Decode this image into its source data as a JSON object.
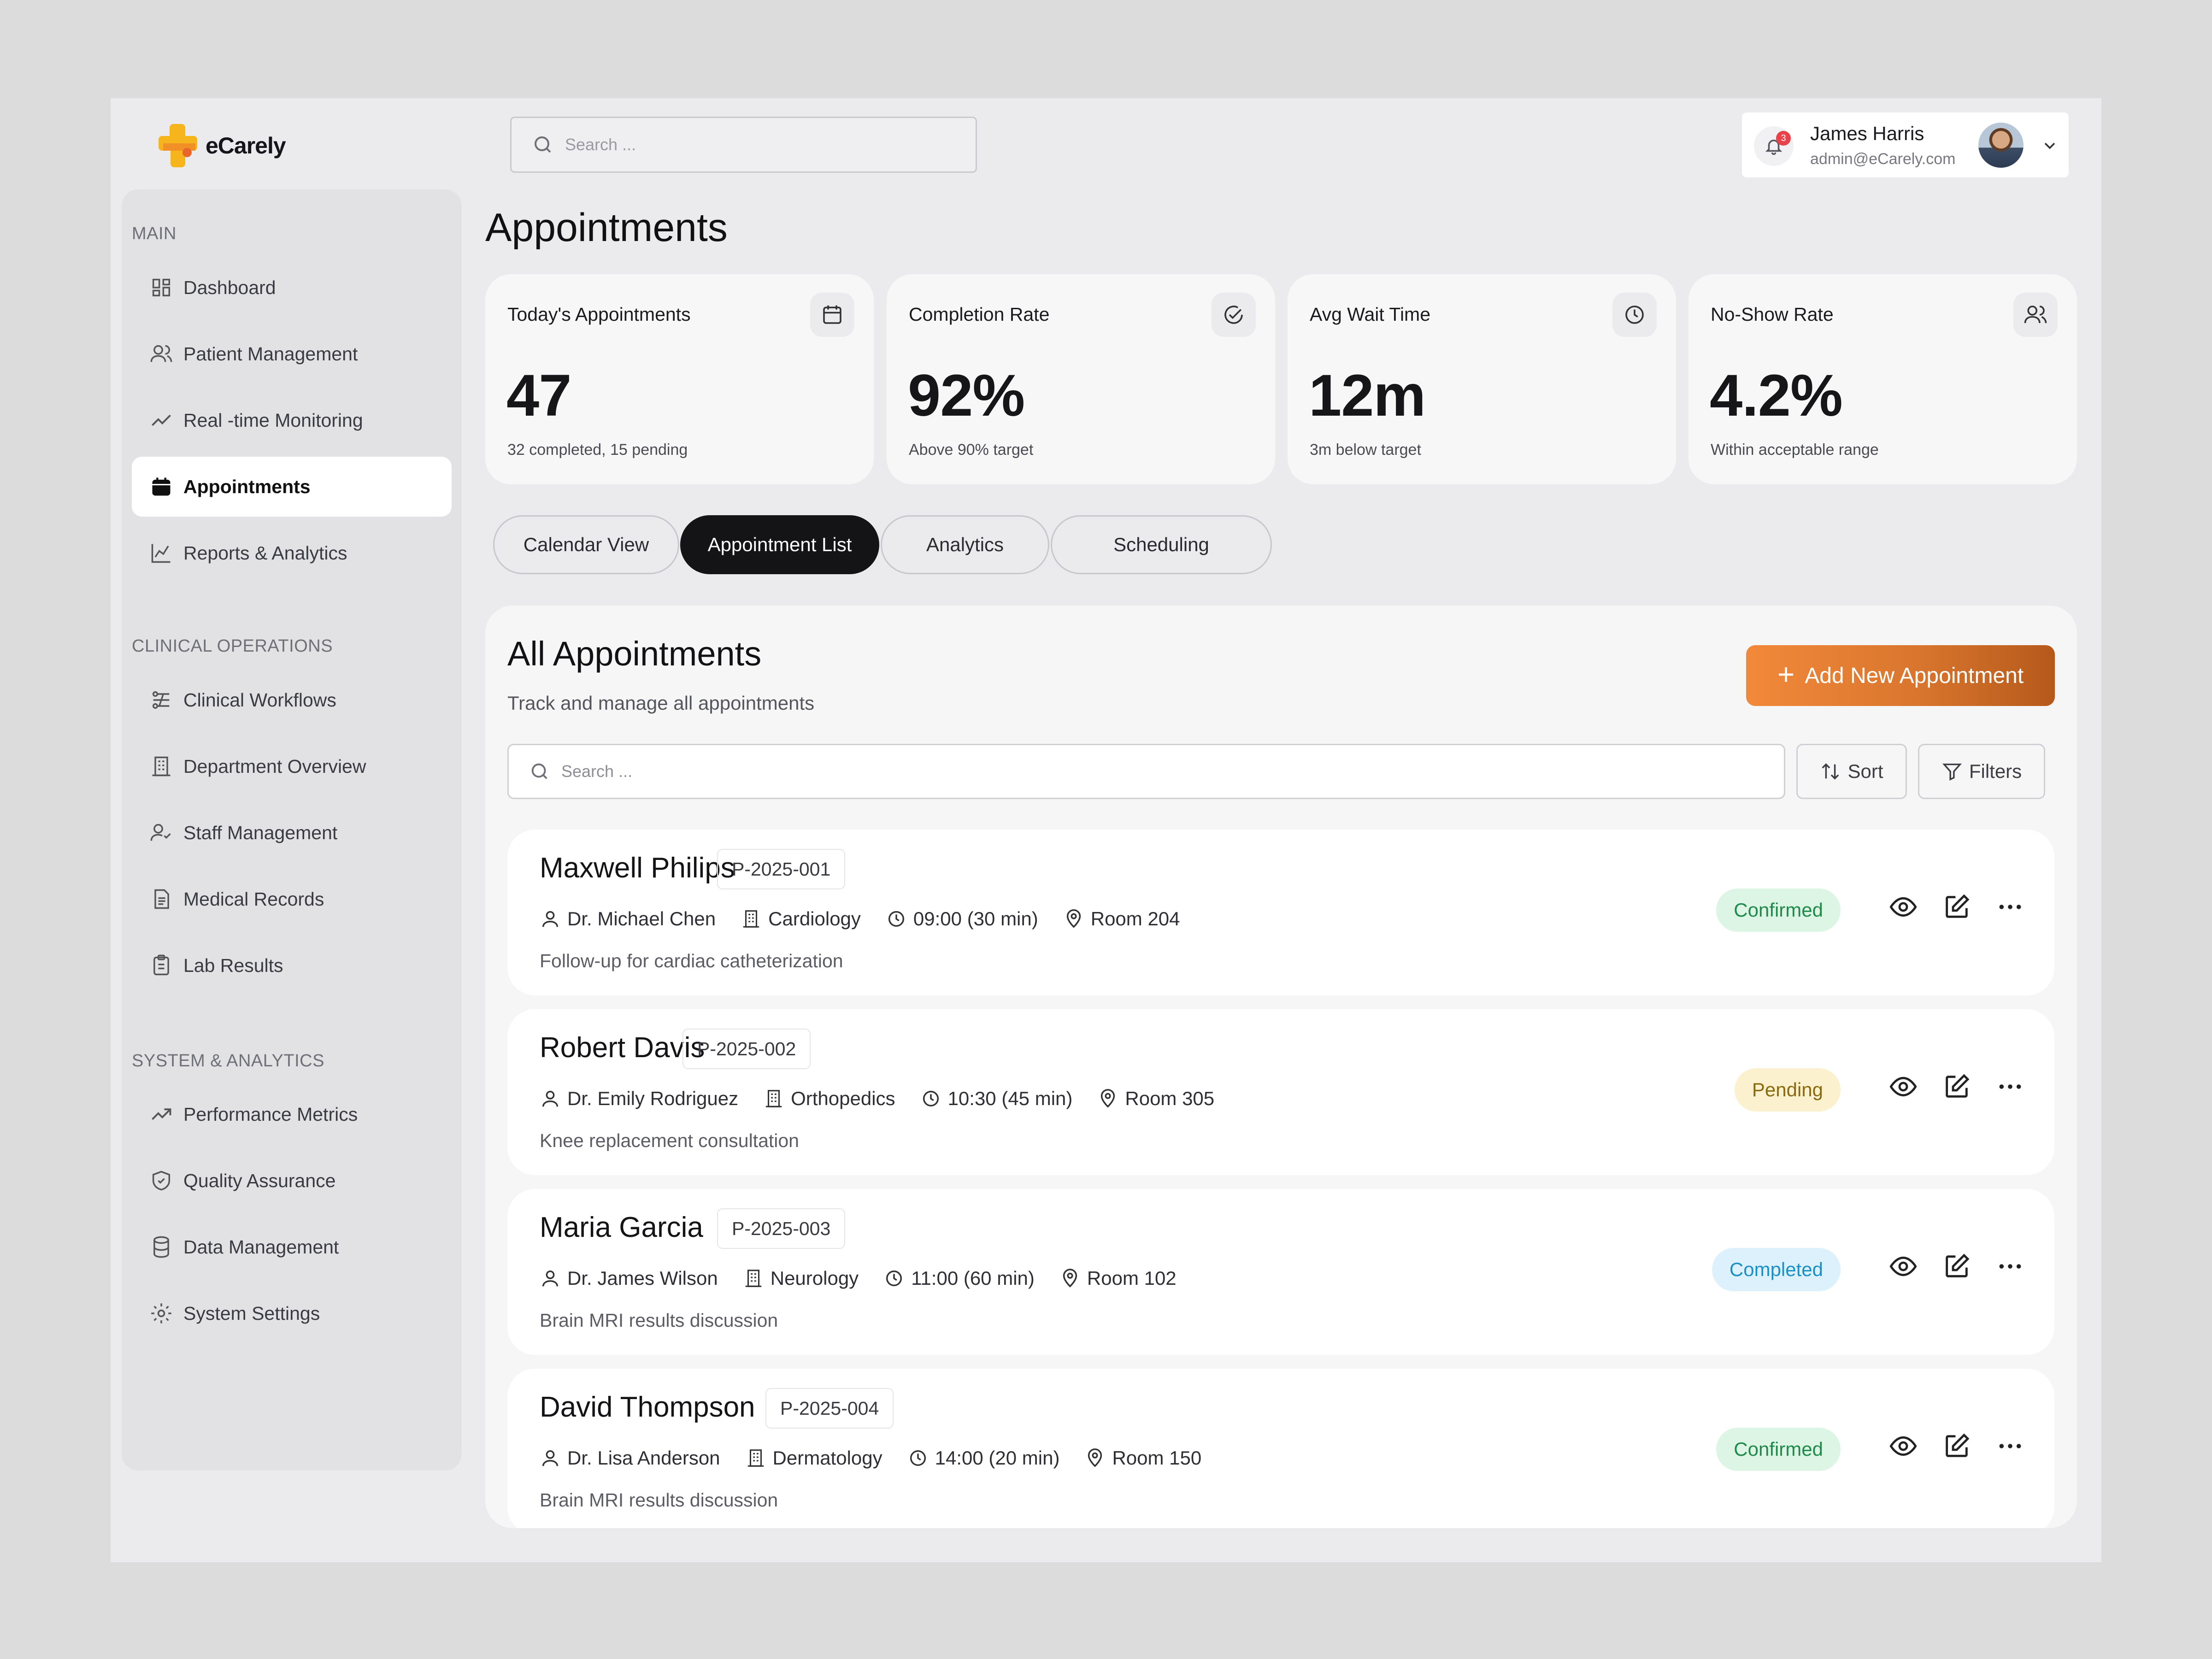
{
  "brand": {
    "name": "eCarely"
  },
  "header": {
    "search_placeholder": "Search ...",
    "notification_count": "3",
    "user_name": "James Harris",
    "user_email": "admin@eCarely.com"
  },
  "sidebar": {
    "sections": [
      {
        "label": "MAIN"
      },
      {
        "label": "CLINICAL OPERATIONS"
      },
      {
        "label": "SYSTEM & ANALYTICS"
      }
    ],
    "items": [
      {
        "label": "Dashboard",
        "icon": "dashboard-icon"
      },
      {
        "label": "Patient Management",
        "icon": "users-icon"
      },
      {
        "label": "Real -time Monitoring",
        "icon": "trend-icon"
      },
      {
        "label": "Appointments",
        "icon": "calendar-icon",
        "active": true
      },
      {
        "label": "Reports &  Analytics",
        "icon": "chart-icon"
      },
      {
        "label": "Clinical Workflows",
        "icon": "workflow-icon"
      },
      {
        "label": "Department Overview",
        "icon": "building-icon"
      },
      {
        "label": "Staff Management",
        "icon": "user-check-icon"
      },
      {
        "label": "Medical Records",
        "icon": "file-icon"
      },
      {
        "label": "Lab Results",
        "icon": "clipboard-icon"
      },
      {
        "label": "Performance Metrics",
        "icon": "trending-up-icon"
      },
      {
        "label": "Quality Assurance",
        "icon": "shield-check-icon"
      },
      {
        "label": "Data Management",
        "icon": "database-icon"
      },
      {
        "label": "System Settings",
        "icon": "gear-icon"
      }
    ]
  },
  "page": {
    "title": "Appointments"
  },
  "stats": [
    {
      "title": "Today's Appointments",
      "value": "47",
      "sub": "32 completed, 15 pending",
      "icon": "calendar-icon"
    },
    {
      "title": "Completion Rate",
      "value": "92%",
      "sub": "Above 90% target",
      "icon": "check-circle-icon"
    },
    {
      "title": "Avg Wait Time",
      "value": "12m",
      "sub": "3m below target",
      "icon": "clock-icon"
    },
    {
      "title": "No-Show Rate",
      "value": "4.2%",
      "sub": "Within acceptable range",
      "icon": "users-icon"
    }
  ],
  "tabs": [
    {
      "label": "Calendar View"
    },
    {
      "label": "Appointment List",
      "active": true
    },
    {
      "label": "Analytics"
    },
    {
      "label": "Scheduling"
    }
  ],
  "list": {
    "title": "All Appointments",
    "subtitle": "Track and manage all appointments",
    "add_label": "Add New Appointment",
    "search_placeholder": "Search ...",
    "sort_label": "Sort",
    "filters_label": "Filters",
    "rows": [
      {
        "name": "Maxwell Philips",
        "id": "P-2025-001",
        "doctor": "Dr. Michael Chen",
        "department": "Cardiology",
        "time": "09:00 (30 min)",
        "room": "Room 204",
        "note": "Follow-up for cardiac catheterization",
        "status": "Confirmed",
        "status_color": "#1f8a4a"
      },
      {
        "name": "Robert Davis",
        "id": "P-2025-002",
        "doctor": "Dr. Emily Rodriguez",
        "department": "Orthopedics",
        "time": "10:30 (45 min)",
        "room": "Room 305",
        "note": "Knee replacement consultation",
        "status": "Pending",
        "status_color": "#8a6a10"
      },
      {
        "name": "Maria Garcia",
        "id": "P-2025-003",
        "doctor": "Dr. James Wilson",
        "department": "Neurology",
        "time": "11:00 (60 min)",
        "room": "Room 102",
        "note": "Brain MRI results discussion",
        "status": "Completed",
        "status_color": "#1a90c6"
      },
      {
        "name": "David Thompson",
        "id": "P-2025-004",
        "doctor": "Dr. Lisa Anderson",
        "department": "Dermatology",
        "time": "14:00 (20 min)",
        "room": "Room 150",
        "note": "Brain MRI results discussion",
        "status": "Confirmed",
        "status_color": "#1f8a4a"
      }
    ]
  },
  "colors": {
    "accent": "#f2893a",
    "active_tab": "#141416",
    "notification": "#e8424a"
  }
}
